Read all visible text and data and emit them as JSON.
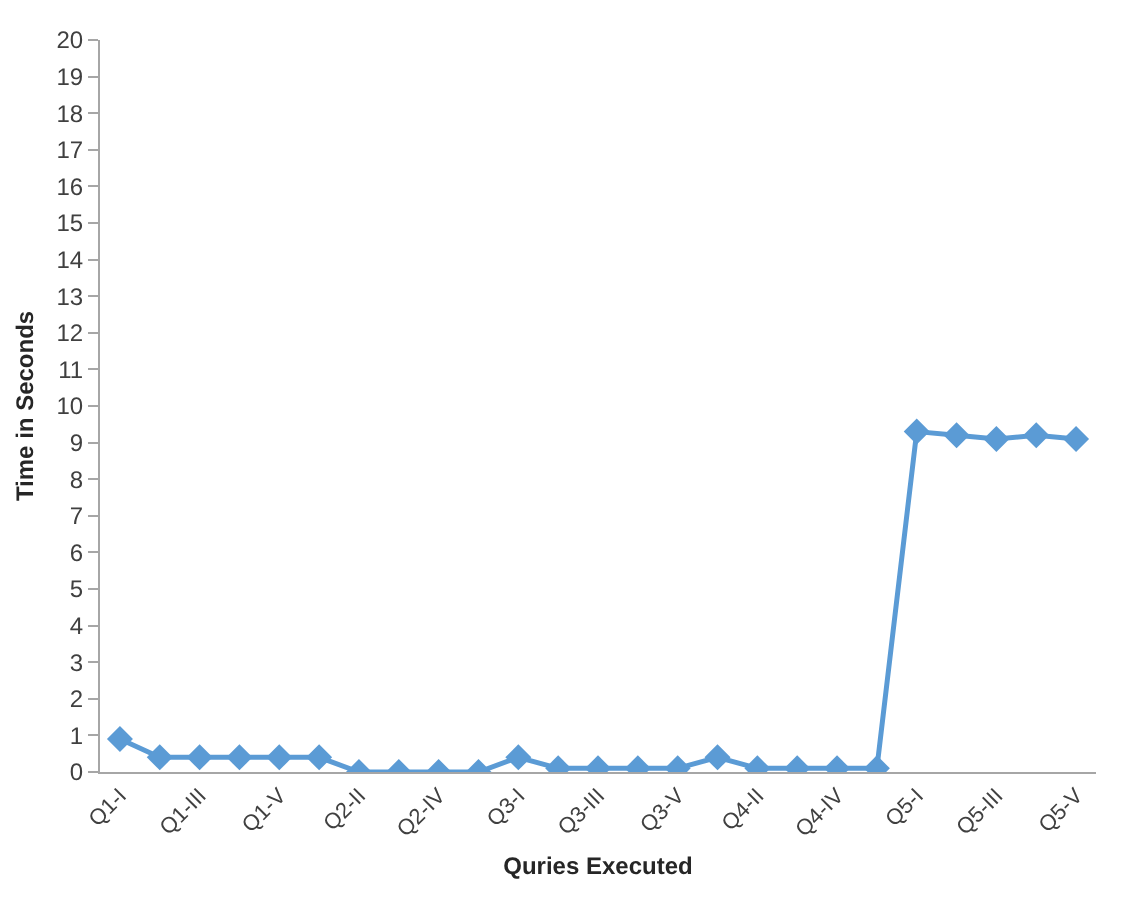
{
  "chart_data": {
    "type": "line",
    "xlabel": "Quries Executed",
    "ylabel": "Time in Seconds",
    "categories": [
      "Q1-I",
      null,
      "Q1-III",
      null,
      "Q1-V",
      null,
      "Q2-II",
      null,
      "Q2-IV",
      null,
      "Q3-I",
      null,
      "Q3-III",
      null,
      "Q3-V",
      null,
      "Q4-II",
      null,
      "Q4-IV",
      null,
      "Q5-I",
      null,
      "Q5-III",
      null,
      "Q5-V"
    ],
    "series": [
      {
        "color": "#5b9bd5",
        "values": [
          0.9,
          0.4,
          0.4,
          0.4,
          0.4,
          0.4,
          0,
          0,
          0,
          0,
          0.4,
          0.1,
          0.1,
          0.1,
          0.1,
          0.4,
          0.1,
          0.1,
          0.1,
          0.1,
          9.3,
          9.2,
          9.1,
          9.2,
          9.1
        ]
      }
    ],
    "ylim": [
      0,
      20
    ],
    "yticks": [
      0,
      1,
      2,
      3,
      4,
      5,
      6,
      7,
      8,
      9,
      10,
      11,
      12,
      13,
      14,
      15,
      16,
      17,
      18,
      19,
      20
    ],
    "grid": false,
    "marker": "diamond",
    "line_style": "solid"
  }
}
